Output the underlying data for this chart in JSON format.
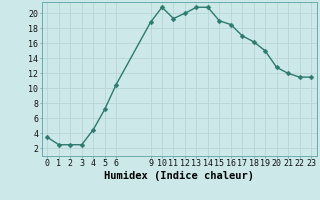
{
  "x": [
    0,
    1,
    2,
    3,
    4,
    5,
    6,
    9,
    10,
    11,
    12,
    13,
    14,
    15,
    16,
    17,
    18,
    19,
    20,
    21,
    22,
    23
  ],
  "y": [
    3.5,
    2.5,
    2.5,
    2.5,
    4.5,
    7.2,
    10.5,
    18.8,
    20.8,
    19.3,
    20.0,
    20.8,
    20.8,
    19.0,
    18.5,
    17.0,
    16.2,
    15.0,
    12.8,
    12.0,
    11.5,
    11.5
  ],
  "line_color": "#2d7a6e",
  "marker_color": "#2d7a6e",
  "bg_color": "#cce8e8",
  "grid_color": "#b8d4d4",
  "xlabel": "Humidex (Indice chaleur)",
  "xlim": [
    -0.5,
    23.5
  ],
  "ylim": [
    1.0,
    21.5
  ],
  "yticks": [
    2,
    4,
    6,
    8,
    10,
    12,
    14,
    16,
    18,
    20
  ],
  "xticks": [
    0,
    1,
    2,
    3,
    4,
    5,
    6,
    9,
    10,
    11,
    12,
    13,
    14,
    15,
    16,
    17,
    18,
    19,
    20,
    21,
    22,
    23
  ],
  "xlabel_fontsize": 7.5,
  "tick_fontsize": 6,
  "line_width": 1.0,
  "marker_size": 2.5
}
